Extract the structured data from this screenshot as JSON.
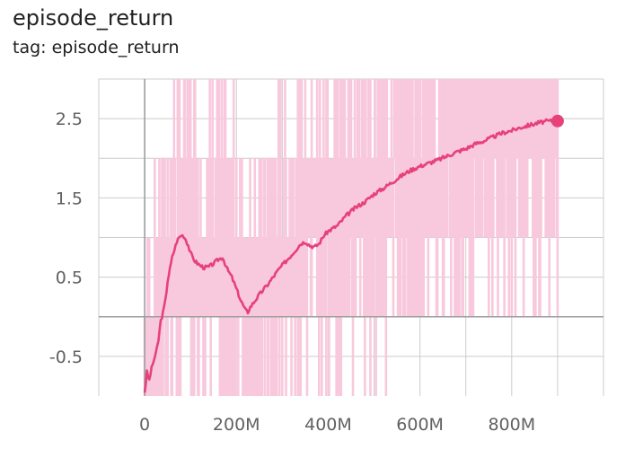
{
  "header": {
    "title": "episode_return",
    "tag_label": "tag: episode_return"
  },
  "chart_data": {
    "type": "line",
    "title": "episode_return",
    "xlabel": "",
    "ylabel": "",
    "xlim": [
      -100000000,
      1000000000
    ],
    "ylim": [
      -1,
      3
    ],
    "x_ticks": [
      0,
      200000000,
      400000000,
      600000000,
      800000000
    ],
    "x_tick_labels": [
      "0",
      "200M",
      "400M",
      "600M",
      "800M"
    ],
    "y_ticks": [
      -0.5,
      0.5,
      1.5,
      2.5
    ],
    "y_tick_labels": [
      "-0.5",
      "0.5",
      "1.5",
      "2.5"
    ],
    "grid": true,
    "colors": {
      "smoothed": "#e7417a",
      "raw": "#f8c9dc",
      "axis": "#9e9e9e",
      "grid": "#cccccc"
    },
    "series": [
      {
        "x": [
          0,
          5000000,
          10000000,
          15000000,
          20000000,
          25000000,
          30000000,
          35000000,
          40000000,
          45000000,
          50000000,
          55000000,
          60000000,
          65000000,
          70000000,
          75000000,
          80000000,
          85000000,
          90000000,
          95000000,
          100000000,
          110000000,
          120000000,
          130000000,
          140000000,
          150000000,
          160000000,
          170000000,
          180000000,
          190000000,
          200000000,
          210000000,
          220000000,
          225000000,
          230000000,
          240000000,
          250000000,
          260000000,
          270000000,
          280000000,
          290000000,
          300000000,
          320000000,
          340000000,
          350000000,
          360000000,
          370000000,
          380000000,
          390000000,
          400000000,
          420000000,
          440000000,
          460000000,
          480000000,
          500000000,
          520000000,
          540000000,
          560000000,
          580000000,
          600000000,
          620000000,
          640000000,
          660000000,
          680000000,
          700000000,
          720000000,
          740000000,
          760000000,
          780000000,
          800000000,
          820000000,
          840000000,
          860000000,
          880000000,
          900000000
        ],
        "y": [
          -0.95,
          -0.7,
          -0.8,
          -0.65,
          -0.55,
          -0.45,
          -0.3,
          -0.05,
          0.05,
          0.2,
          0.45,
          0.6,
          0.75,
          0.85,
          0.95,
          1.0,
          1.03,
          1.02,
          0.97,
          0.9,
          0.8,
          0.7,
          0.65,
          0.62,
          0.63,
          0.67,
          0.72,
          0.75,
          0.6,
          0.5,
          0.35,
          0.2,
          0.08,
          0.06,
          0.12,
          0.2,
          0.28,
          0.35,
          0.42,
          0.5,
          0.58,
          0.65,
          0.78,
          0.92,
          0.95,
          0.9,
          0.88,
          0.92,
          1.02,
          1.08,
          1.15,
          1.28,
          1.38,
          1.45,
          1.55,
          1.62,
          1.7,
          1.78,
          1.85,
          1.9,
          1.94,
          1.98,
          2.03,
          2.08,
          2.12,
          2.18,
          2.22,
          2.27,
          2.32,
          2.35,
          2.39,
          2.42,
          2.45,
          2.47,
          2.47
        ]
      }
    ]
  }
}
